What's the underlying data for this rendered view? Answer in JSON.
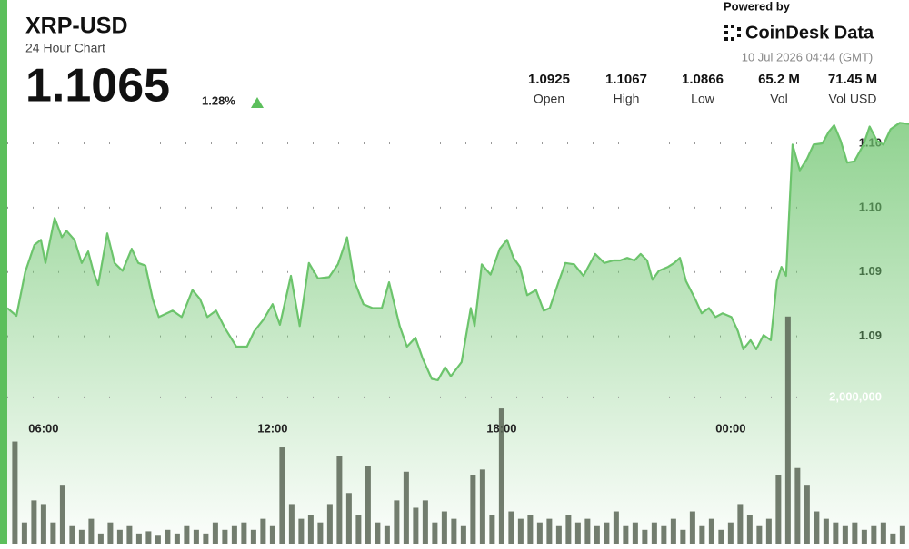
{
  "header": {
    "symbol": "XRP-USD",
    "subtitle": "24 Hour Chart",
    "price": "1.1065",
    "change": "1.28%",
    "date": "10 Jul 2026 04:44 (GMT)"
  },
  "branding": {
    "powered_by": "Powered by",
    "name": "CoinDesk Data"
  },
  "stats": [
    {
      "value": "1.0925",
      "label": "Open"
    },
    {
      "value": "1.1067",
      "label": "High"
    },
    {
      "value": "1.0866",
      "label": "Low"
    },
    {
      "value": "65.2 M",
      "label": "Vol"
    },
    {
      "value": "71.45 M",
      "label": "Vol USD"
    }
  ],
  "chart_data": [
    {
      "type": "line",
      "color": "#6cc46c",
      "grid": true,
      "x": [
        5.05,
        5.29,
        5.52,
        5.76,
        5.93,
        6.05,
        6.29,
        6.48,
        6.6,
        6.81,
        7.0,
        7.17,
        7.31,
        7.43,
        7.67,
        7.86,
        8.07,
        8.31,
        8.48,
        8.67,
        8.86,
        9.02,
        9.38,
        9.62,
        9.9,
        10.1,
        10.29,
        10.52,
        10.76,
        11.05,
        11.33,
        11.52,
        11.76,
        12.0,
        12.19,
        12.48,
        12.71,
        12.95,
        13.19,
        13.48,
        13.71,
        13.95,
        14.14,
        14.38,
        14.62,
        14.86,
        15.05,
        15.33,
        15.52,
        15.74,
        15.93,
        16.17,
        16.33,
        16.52,
        16.67,
        16.95,
        17.19,
        17.29,
        17.48,
        17.71,
        17.95,
        18.14,
        18.31,
        18.48,
        18.67,
        18.9,
        19.1,
        19.26,
        19.5,
        19.67,
        19.9,
        20.14,
        20.45,
        20.69,
        20.93,
        21.1,
        21.29,
        21.48,
        21.64,
        21.81,
        21.95,
        22.12,
        22.36,
        22.52,
        22.67,
        22.83,
        23.07,
        23.24,
        23.43,
        23.6,
        23.79,
        24.02,
        24.19,
        24.33,
        24.52,
        24.67,
        24.86,
        25.05,
        25.21,
        25.33,
        25.45,
        25.62,
        25.81,
        26.0,
        26.17,
        26.4,
        26.57,
        26.71,
        26.88,
        27.05,
        27.24,
        27.48,
        27.64,
        27.83,
        28.0,
        28.19,
        28.43,
        28.67
      ],
      "values": [
        1.0922,
        1.0916,
        1.095,
        1.0971,
        1.0975,
        1.0957,
        1.0992,
        1.0977,
        1.0982,
        1.0975,
        1.0957,
        1.0966,
        1.095,
        1.094,
        1.098,
        1.0957,
        1.0951,
        1.0968,
        1.0957,
        1.0955,
        1.0929,
        1.0915,
        1.092,
        1.0915,
        1.0936,
        1.0929,
        1.0915,
        1.092,
        1.0906,
        1.0892,
        1.0892,
        1.0904,
        1.0913,
        1.0925,
        1.0909,
        1.0947,
        1.0908,
        1.0957,
        1.0945,
        1.0946,
        1.0956,
        1.0977,
        1.0943,
        1.0925,
        1.0922,
        1.0922,
        1.0942,
        1.0908,
        1.0892,
        1.0899,
        1.0883,
        1.0867,
        1.0866,
        1.0876,
        1.0869,
        1.088,
        1.0922,
        1.0908,
        1.0956,
        1.0948,
        1.0968,
        1.0975,
        1.0961,
        1.0954,
        1.0932,
        1.0936,
        1.092,
        1.0922,
        1.0943,
        1.0957,
        1.0956,
        1.0947,
        1.0964,
        1.0957,
        1.0959,
        1.0959,
        1.0961,
        1.0959,
        1.0964,
        1.0959,
        1.0944,
        1.0951,
        1.0954,
        1.0957,
        1.0961,
        1.0943,
        1.0929,
        1.0918,
        1.0922,
        1.0915,
        1.0918,
        1.0915,
        1.0904,
        1.089,
        1.0897,
        1.089,
        1.0901,
        1.0897,
        1.0943,
        1.0954,
        1.0947,
        1.1049,
        1.1029,
        1.1038,
        1.1049,
        1.105,
        1.1059,
        1.1064,
        1.1052,
        1.1035,
        1.1036,
        1.1049,
        1.1063,
        1.1052,
        1.1049,
        1.1061,
        1.1066,
        1.1065
      ],
      "xlim": [
        5.05,
        28.67
      ],
      "xticks": [
        {
          "value": 6,
          "label": "06:00"
        },
        {
          "value": 12,
          "label": "12:00"
        },
        {
          "value": 18,
          "label": "18:00"
        },
        {
          "value": 24,
          "label": "00:00"
        }
      ],
      "ylim": [
        1.0855,
        1.1075
      ],
      "yticks": [
        {
          "value": 1.105,
          "label": "1.10"
        },
        {
          "value": 1.1,
          "label": "1.10"
        },
        {
          "value": 1.095,
          "label": "1.09"
        },
        {
          "value": 1.09,
          "label": "1.09"
        }
      ]
    },
    {
      "type": "bar",
      "color": "#5b6656",
      "x": [
        5.25,
        5.5,
        5.75,
        6,
        6.25,
        6.5,
        6.75,
        7,
        7.25,
        7.5,
        7.75,
        8,
        8.25,
        8.5,
        8.75,
        9,
        9.25,
        9.5,
        9.75,
        10,
        10.25,
        10.5,
        10.75,
        11,
        11.25,
        11.5,
        11.75,
        12,
        12.25,
        12.5,
        12.75,
        13,
        13.25,
        13.5,
        13.75,
        14,
        14.25,
        14.5,
        14.75,
        15,
        15.25,
        15.5,
        15.75,
        16,
        16.25,
        16.5,
        16.75,
        17,
        17.25,
        17.5,
        17.75,
        18,
        18.25,
        18.5,
        18.75,
        19,
        19.25,
        19.5,
        19.75,
        20,
        20.25,
        20.5,
        20.75,
        21,
        21.25,
        21.5,
        21.75,
        22,
        22.25,
        22.5,
        22.75,
        23,
        23.25,
        23.5,
        23.75,
        24,
        24.25,
        24.5,
        24.75,
        25,
        25.25,
        25.5,
        25.75,
        26,
        26.25,
        26.5,
        26.75,
        27,
        27.25,
        27.5,
        27.75,
        28,
        28.25,
        28.5
      ],
      "values": [
        1400000,
        300000,
        600000,
        550000,
        300000,
        800000,
        250000,
        200000,
        350000,
        150000,
        300000,
        200000,
        250000,
        150000,
        180000,
        120000,
        200000,
        150000,
        250000,
        200000,
        150000,
        300000,
        200000,
        250000,
        300000,
        200000,
        350000,
        250000,
        1320000,
        550000,
        350000,
        400000,
        300000,
        550000,
        1200000,
        700000,
        400000,
        1070000,
        300000,
        250000,
        600000,
        990000,
        500000,
        600000,
        300000,
        450000,
        350000,
        250000,
        940000,
        1020000,
        400000,
        1850000,
        450000,
        350000,
        400000,
        300000,
        350000,
        250000,
        400000,
        300000,
        350000,
        250000,
        300000,
        450000,
        250000,
        300000,
        200000,
        300000,
        250000,
        350000,
        200000,
        450000,
        250000,
        350000,
        200000,
        300000,
        550000,
        400000,
        250000,
        350000,
        950000,
        3100000,
        1040000,
        800000,
        450000,
        350000,
        300000,
        250000,
        300000,
        200000,
        250000,
        300000,
        150000,
        250000
      ],
      "xlim": [
        5.05,
        28.67
      ],
      "ylim": [
        0,
        5800000
      ],
      "yticks": [
        {
          "value": 2000000,
          "label": "2,000,000"
        }
      ]
    }
  ]
}
